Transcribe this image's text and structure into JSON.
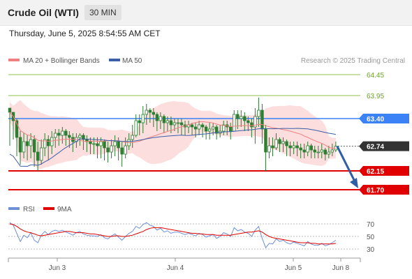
{
  "header": {
    "title": "Crude Oil (WTI)",
    "timeframe": "30 MIN",
    "datetime": "Thursday, June 5, 2025 8:54:55 AM CET"
  },
  "credit": "Research © 2025 Trading Central",
  "colors": {
    "candle": "#2e7d32",
    "ma20": "#f08080",
    "ma50": "#3b5ea8",
    "bollinger_fill": "#fbd8d8",
    "green_level": "#8fc04e",
    "blue_level": "#3b82f6",
    "red_level": "#e00000",
    "price_tag": "#333333",
    "arrow": "#2f5ea6",
    "rsi": "#6f8fd8",
    "rsi_ma": "#e00000"
  },
  "chart_data": [
    {
      "type": "candlestick",
      "title": "",
      "legend": [
        {
          "name": "MA 20 + Bollinger Bands",
          "color": "#f08080"
        },
        {
          "name": "MA 50",
          "color": "#3b5ea8"
        }
      ],
      "legend_position": "top-left",
      "ylim": [
        61.55,
        64.55
      ],
      "x_ticks": [
        "Jun 3",
        "Jun 4",
        "Jun 5",
        "Jun 8"
      ],
      "levels": [
        {
          "value": 64.45,
          "label": "64.45",
          "style": "resistance-green"
        },
        {
          "value": 63.95,
          "label": "63.95",
          "style": "resistance-green"
        },
        {
          "value": 63.4,
          "label": "63.40",
          "style": "resistance-blue"
        },
        {
          "value": 62.74,
          "label": "62.74",
          "style": "current-price"
        },
        {
          "value": 62.15,
          "label": "62.15",
          "style": "support-red"
        },
        {
          "value": 61.7,
          "label": "61.70",
          "style": "support-red"
        }
      ],
      "forecast_arrow": {
        "from": 62.74,
        "to": 61.7
      },
      "close": [
        63.55,
        63.35,
        62.95,
        62.6,
        62.85,
        62.75,
        62.9,
        62.6,
        62.4,
        62.7,
        62.9,
        62.75,
        62.95,
        63.05,
        63.0,
        63.1,
        63.0,
        62.95,
        62.85,
        62.95,
        63.0,
        62.9,
        62.85,
        62.8,
        62.8,
        62.75,
        62.85,
        62.7,
        62.6,
        62.75,
        62.85,
        62.7,
        62.55,
        62.75,
        62.9,
        63.0,
        63.35,
        63.3,
        63.5,
        63.6,
        63.55,
        63.5,
        63.35,
        63.45,
        63.3,
        63.35,
        63.25,
        63.3,
        63.3,
        63.25,
        63.2,
        63.25,
        63.2,
        63.15,
        63.25,
        63.2,
        63.1,
        63.15,
        63.2,
        63.05,
        63.1,
        63.25,
        63.2,
        63.1,
        63.5,
        63.4,
        63.45,
        63.35,
        63.3,
        63.2,
        63.45,
        63.6,
        63.15,
        62.6,
        62.75,
        62.7,
        62.9,
        62.8,
        62.85,
        62.75,
        62.7,
        62.75,
        62.7,
        62.65,
        62.6,
        62.75,
        62.65,
        62.6,
        62.6,
        62.65,
        62.55,
        62.6,
        62.65,
        62.74
      ],
      "low": [
        62.75,
        62.9,
        62.5,
        62.3,
        62.45,
        62.4,
        62.45,
        62.25,
        62.15,
        62.3,
        62.5,
        62.4,
        62.55,
        62.7,
        62.75,
        62.8,
        62.75,
        62.7,
        62.6,
        62.7,
        62.75,
        62.65,
        62.6,
        62.55,
        62.55,
        62.45,
        62.45,
        62.4,
        62.35,
        62.45,
        62.5,
        62.4,
        62.25,
        62.45,
        62.65,
        62.7,
        62.95,
        63.0,
        63.05,
        63.25,
        63.3,
        63.2,
        63.1,
        63.15,
        63.05,
        63.1,
        63.05,
        63.1,
        63.05,
        63.0,
        63.0,
        63.05,
        63.0,
        62.95,
        63.0,
        62.95,
        62.9,
        62.9,
        63.0,
        62.9,
        62.95,
        63.0,
        63.0,
        62.9,
        63.1,
        63.15,
        63.2,
        63.1,
        63.1,
        62.95,
        62.8,
        63.2,
        62.8,
        62.15,
        62.45,
        62.5,
        62.65,
        62.6,
        62.6,
        62.5,
        62.5,
        62.55,
        62.5,
        62.45,
        62.45,
        62.5,
        62.45,
        62.45,
        62.45,
        62.45,
        62.4,
        62.45,
        62.5,
        62.6
      ],
      "high": [
        63.65,
        63.55,
        63.4,
        63.1,
        63.05,
        63.0,
        63.05,
        63.0,
        62.85,
        62.9,
        63.05,
        63.0,
        63.1,
        63.15,
        63.15,
        63.2,
        63.15,
        63.1,
        63.05,
        63.05,
        63.05,
        63.05,
        63.0,
        62.95,
        62.95,
        62.95,
        62.95,
        62.9,
        62.85,
        62.9,
        63.0,
        62.95,
        62.85,
        62.95,
        63.05,
        63.25,
        63.5,
        63.5,
        63.7,
        63.75,
        63.65,
        63.65,
        63.55,
        63.55,
        63.5,
        63.45,
        63.45,
        63.4,
        63.4,
        63.4,
        63.35,
        63.35,
        63.3,
        63.3,
        63.35,
        63.3,
        63.25,
        63.3,
        63.3,
        63.25,
        63.25,
        63.35,
        63.35,
        63.3,
        63.6,
        63.6,
        63.6,
        63.55,
        63.45,
        63.4,
        63.65,
        63.9,
        63.75,
        63.25,
        62.95,
        62.95,
        63.05,
        62.95,
        62.95,
        62.9,
        62.85,
        62.85,
        62.85,
        62.8,
        62.8,
        62.85,
        62.8,
        62.75,
        62.75,
        62.8,
        62.7,
        62.75,
        62.8,
        62.85
      ]
    },
    {
      "type": "line",
      "title": "",
      "legend": [
        {
          "name": "RSI",
          "color": "#6f8fd8"
        },
        {
          "name": "9MA",
          "color": "#e00000"
        }
      ],
      "legend_position": "top-left",
      "ylim": [
        20,
        80
      ],
      "y_ticks": [
        30,
        50,
        70
      ],
      "series": [
        {
          "name": "RSI",
          "values": [
            72,
            68,
            55,
            42,
            52,
            48,
            56,
            44,
            40,
            52,
            58,
            53,
            58,
            60,
            58,
            60,
            57,
            55,
            52,
            56,
            58,
            54,
            52,
            51,
            51,
            50,
            53,
            48,
            46,
            51,
            54,
            49,
            44,
            50,
            55,
            58,
            66,
            63,
            69,
            72,
            68,
            66,
            60,
            63,
            57,
            59,
            55,
            57,
            57,
            55,
            53,
            55,
            53,
            51,
            55,
            53,
            49,
            51,
            53,
            47,
            50,
            56,
            54,
            50,
            64,
            59,
            61,
            57,
            55,
            50,
            60,
            66,
            47,
            32,
            39,
            38,
            46,
            42,
            44,
            40,
            38,
            41,
            39,
            37,
            35,
            42,
            38,
            36,
            36,
            39,
            35,
            37,
            40,
            44
          ]
        },
        {
          "name": "9MA",
          "values": [
            70,
            69,
            66,
            62,
            59,
            57,
            56,
            54,
            52,
            51,
            52,
            53,
            54,
            55,
            56,
            57,
            58,
            58,
            57,
            56,
            56,
            56,
            55,
            54,
            54,
            53,
            52,
            51,
            50,
            50,
            51,
            51,
            50,
            50,
            51,
            52,
            54,
            56,
            58,
            61,
            63,
            64,
            64,
            64,
            63,
            62,
            61,
            60,
            59,
            58,
            57,
            56,
            55,
            55,
            54,
            54,
            53,
            53,
            53,
            52,
            52,
            52,
            52,
            52,
            53,
            54,
            55,
            56,
            57,
            57,
            58,
            59,
            57,
            53,
            50,
            48,
            47,
            46,
            45,
            44,
            43,
            42,
            41,
            40,
            40,
            40,
            39,
            39,
            38,
            38,
            38,
            38,
            38,
            39
          ]
        }
      ]
    }
  ]
}
